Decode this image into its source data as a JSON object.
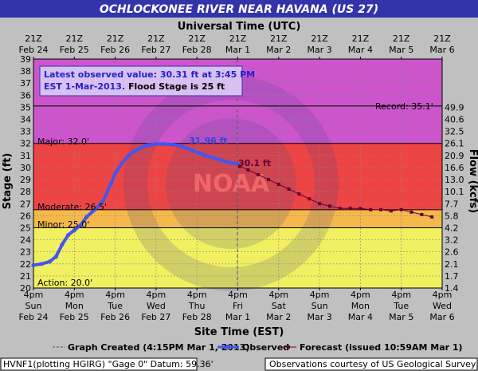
{
  "title": "OCHLOCKONEE RIVER NEAR HAVANA (US 27)",
  "top_axis_title": "Universal Time (UTC)",
  "bottom_axis_title": "Site Time (EST)",
  "left_axis_title": "Stage (ft)",
  "right_axis_title": "Flow (kcfs)",
  "top_ticks": [
    {
      "l1": "21Z",
      "l2": "Feb 24"
    },
    {
      "l1": "21Z",
      "l2": "Feb 25"
    },
    {
      "l1": "21Z",
      "l2": "Feb 26"
    },
    {
      "l1": "21Z",
      "l2": "Feb 27"
    },
    {
      "l1": "21Z",
      "l2": "Feb 28"
    },
    {
      "l1": "21Z",
      "l2": "Mar 1"
    },
    {
      "l1": "21Z",
      "l2": "Mar 2"
    },
    {
      "l1": "21Z",
      "l2": "Mar 3"
    },
    {
      "l1": "21Z",
      "l2": "Mar 4"
    },
    {
      "l1": "21Z",
      "l2": "Mar 5"
    },
    {
      "l1": "21Z",
      "l2": "Mar 6"
    }
  ],
  "bottom_ticks": [
    {
      "l1": "4pm",
      "l2": "Sun",
      "l3": "Feb 24"
    },
    {
      "l1": "4pm",
      "l2": "Mon",
      "l3": "Feb 25"
    },
    {
      "l1": "4pm",
      "l2": "Tue",
      "l3": "Feb 26"
    },
    {
      "l1": "4pm",
      "l2": "Wed",
      "l3": "Feb 27"
    },
    {
      "l1": "4pm",
      "l2": "Thu",
      "l3": "Feb 28"
    },
    {
      "l1": "4pm",
      "l2": "Fri",
      "l3": "Mar 1"
    },
    {
      "l1": "4pm",
      "l2": "Sat",
      "l3": "Mar 2"
    },
    {
      "l1": "4pm",
      "l2": "Sun",
      "l3": "Mar 3"
    },
    {
      "l1": "4pm",
      "l2": "Mon",
      "l3": "Mar 4"
    },
    {
      "l1": "4pm",
      "l2": "Tue",
      "l3": "Mar 5"
    },
    {
      "l1": "4pm",
      "l2": "Wed",
      "l3": "Mar 6"
    }
  ],
  "stage_ticks": [
    "20",
    "21",
    "22",
    "23",
    "24",
    "25",
    "26",
    "27",
    "28",
    "29",
    "30",
    "31",
    "32",
    "33",
    "34",
    "35",
    "36",
    "37",
    "38",
    "39"
  ],
  "flow_ticks": [
    {
      "stage": 20,
      "label": "1.4"
    },
    {
      "stage": 21,
      "label": "1.7"
    },
    {
      "stage": 22,
      "label": "2.1"
    },
    {
      "stage": 23,
      "label": "2.6"
    },
    {
      "stage": 24,
      "label": "3.2"
    },
    {
      "stage": 25,
      "label": "4.2"
    },
    {
      "stage": 26,
      "label": "5.8"
    },
    {
      "stage": 27,
      "label": "7.7"
    },
    {
      "stage": 28,
      "label": "10.1"
    },
    {
      "stage": 29,
      "label": "13.0"
    },
    {
      "stage": 30,
      "label": "16.6"
    },
    {
      "stage": 31,
      "label": "20.9"
    },
    {
      "stage": 32,
      "label": "26.1"
    },
    {
      "stage": 33,
      "label": "32.5"
    },
    {
      "stage": 34,
      "label": "40.6"
    },
    {
      "stage": 35,
      "label": "49.9"
    }
  ],
  "info_box": {
    "line1": "Latest observed value: 30.31 ft at 3:45 PM",
    "line2a": "EST 1-Mar-2013.",
    "line2b": " Flood Stage is 25 ft"
  },
  "flood_levels": {
    "record_label": "Record: 35.1'",
    "major_label": "Major: 32.0'",
    "moderate_label": "Moderate: 26.5'",
    "minor_label": "Minor: 25.0'",
    "action_label": "Action: 20.0'"
  },
  "annotations": {
    "crest_label": "31.96 ft",
    "forecast_start_label": "30.1 ft"
  },
  "legend": {
    "created": "Graph Created (4:15PM Mar 1, 2013)",
    "observed": "Observed",
    "forecast": "Forecast (issued 10:59AM Mar 1)"
  },
  "footer": {
    "left": "HVNF1(plotting HGIRG) \"Gage 0\" Datum: 59.36'",
    "right": "Observations courtesy of US Geological Survey"
  },
  "colors": {
    "action_band": "#f0f060",
    "minor_band": "#f5b84a",
    "moderate_band": "#ee4444",
    "major_band": "#cc55cc",
    "observed": "#4455ee",
    "forecast": "#660033"
  },
  "chart_data": {
    "type": "line",
    "x_unit": "days since Feb 24 4pm EST",
    "x_range": [
      0,
      10
    ],
    "ylim": [
      20,
      39
    ],
    "flood_stages": {
      "record": 35.1,
      "major": 32.0,
      "moderate": 26.5,
      "minor": 25.0,
      "action": 20.0
    },
    "graph_created_x": 4.99,
    "series": [
      {
        "name": "Observed",
        "x": [
          0,
          0.2,
          0.4,
          0.55,
          0.7,
          0.85,
          1.0,
          1.15,
          1.3,
          1.5,
          1.7,
          1.9,
          2.0,
          2.15,
          2.3,
          2.45,
          2.6,
          2.8,
          3.0,
          3.2,
          3.4,
          3.6,
          3.75,
          3.9,
          4.05,
          4.2,
          4.4,
          4.6,
          4.8,
          4.98
        ],
        "y": [
          21.9,
          22.0,
          22.2,
          22.6,
          23.6,
          24.4,
          24.8,
          25.2,
          25.9,
          26.5,
          27.2,
          28.7,
          29.5,
          30.3,
          30.9,
          31.3,
          31.6,
          31.85,
          31.96,
          31.95,
          31.9,
          31.8,
          31.6,
          31.4,
          31.2,
          31.0,
          30.8,
          30.6,
          30.4,
          30.31
        ]
      },
      {
        "name": "Forecast",
        "x": [
          5.05,
          5.25,
          5.5,
          5.75,
          6.0,
          6.25,
          6.5,
          6.75,
          7.0,
          7.25,
          7.5,
          7.75,
          8.0,
          8.25,
          8.5,
          8.75,
          9.0,
          9.25,
          9.5,
          9.75
        ],
        "y": [
          30.1,
          29.8,
          29.4,
          29.0,
          28.6,
          28.2,
          27.8,
          27.4,
          27.0,
          26.8,
          26.6,
          26.6,
          26.6,
          26.5,
          26.5,
          26.4,
          26.5,
          26.3,
          26.1,
          25.9
        ]
      }
    ]
  }
}
